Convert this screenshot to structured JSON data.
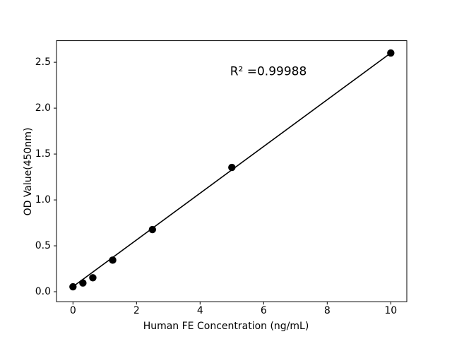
{
  "figure": {
    "background": "#ffffff"
  },
  "chart_data": {
    "type": "scatter",
    "title": "",
    "xlabel": "Human FE Concentration (ng/mL)",
    "ylabel": "OD Value(450nm)",
    "annotation": {
      "text": "R² =0.99988",
      "r_squared": 0.99988
    },
    "x": [
      0,
      0.3125,
      0.625,
      1.25,
      2.5,
      5,
      10
    ],
    "y": [
      0.054,
      0.095,
      0.152,
      0.344,
      0.677,
      1.354,
      2.601
    ],
    "fit_line": {
      "x": [
        0,
        10
      ],
      "y": [
        0.055,
        2.601
      ]
    },
    "x_ticks": [
      0,
      2,
      4,
      6,
      8,
      10
    ],
    "y_ticks": [
      0.0,
      0.5,
      1.0,
      1.5,
      2.0,
      2.5
    ],
    "xlim": [
      -0.518,
      10.504
    ],
    "ylim": [
      -0.109,
      2.735
    ],
    "grid": false,
    "legend": null,
    "marker_style": "filled-circle",
    "colors": {
      "line": "#000000",
      "marker": "#000000",
      "axis": "#000000",
      "text": "#000000",
      "background": "#ffffff"
    }
  }
}
